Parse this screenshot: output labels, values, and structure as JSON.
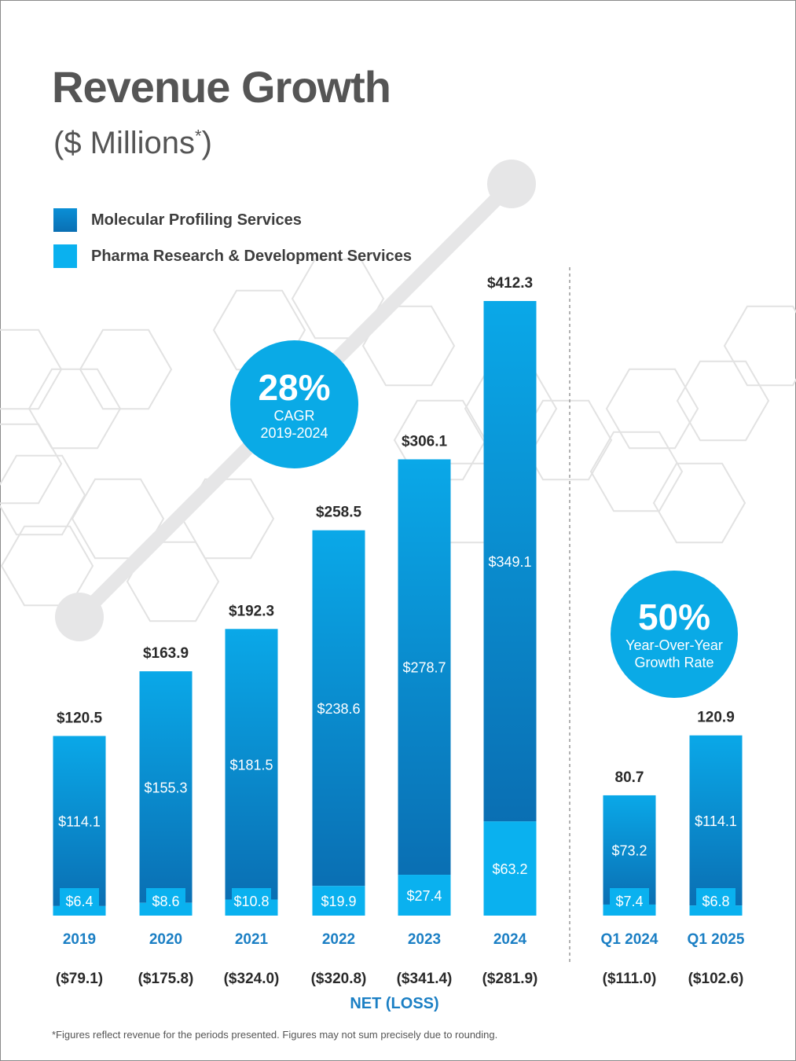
{
  "title": "Revenue Growth",
  "subtitle": "($ Millions",
  "subtitle_mark": "*",
  "subtitle_close": ")",
  "legend": [
    {
      "label": "Molecular Profiling Services",
      "color": "#0f7cc2"
    },
    {
      "label": "Pharma Research & Development Services",
      "color": "#0ab1ef"
    }
  ],
  "badges": {
    "cagr": {
      "value": "28%",
      "line1": "CAGR",
      "line2": "2019-2024"
    },
    "yoy": {
      "value": "50%",
      "line1": "Year-Over-Year",
      "line2": "Growth Rate"
    }
  },
  "net_loss_title": "NET (LOSS)",
  "footnote": "*Figures reflect revenue for the periods presented. Figures may not sum precisely due to rounding.",
  "colors": {
    "bar_top": "#0aa8e8",
    "bar_bottom": "#0a6fb3",
    "pharma": "#0ab1ef",
    "axis_label": "#1b7fc4",
    "text_dark": "#2a2a2a"
  },
  "chart_data": {
    "type": "bar",
    "stacked": true,
    "title": "Revenue Growth",
    "ylabel": "$ Millions",
    "categories": [
      "2019",
      "2020",
      "2021",
      "2022",
      "2023",
      "2024",
      "Q1 2024",
      "Q1 2025"
    ],
    "series": [
      {
        "name": "Pharma Research & Development Services",
        "values": [
          6.4,
          8.6,
          10.8,
          19.9,
          27.4,
          63.2,
          7.4,
          6.8
        ],
        "labels": [
          "$6.4",
          "$8.6",
          "$10.8",
          "$19.9",
          "$27.4",
          "$63.2",
          "$7.4",
          "$6.8"
        ]
      },
      {
        "name": "Molecular Profiling Services",
        "values": [
          114.1,
          155.3,
          181.5,
          238.6,
          278.7,
          349.1,
          73.2,
          114.1
        ],
        "labels": [
          "$114.1",
          "$155.3",
          "$181.5",
          "$238.6",
          "$278.7",
          "$349.1",
          "$73.2",
          "$114.1"
        ]
      }
    ],
    "totals": [
      120.5,
      163.9,
      192.3,
      258.5,
      306.1,
      412.3,
      80.7,
      120.9
    ],
    "total_labels": [
      "$120.5",
      "$163.9",
      "$192.3",
      "$258.5",
      "$306.1",
      "$412.3",
      "80.7",
      "120.9"
    ],
    "net_loss_labels": [
      "($79.1)",
      "($175.8)",
      "($324.0)",
      "($320.8)",
      "($341.4)",
      "($281.9)",
      "($111.0)",
      "($102.6)"
    ],
    "ylim": [
      0,
      412.3
    ]
  }
}
